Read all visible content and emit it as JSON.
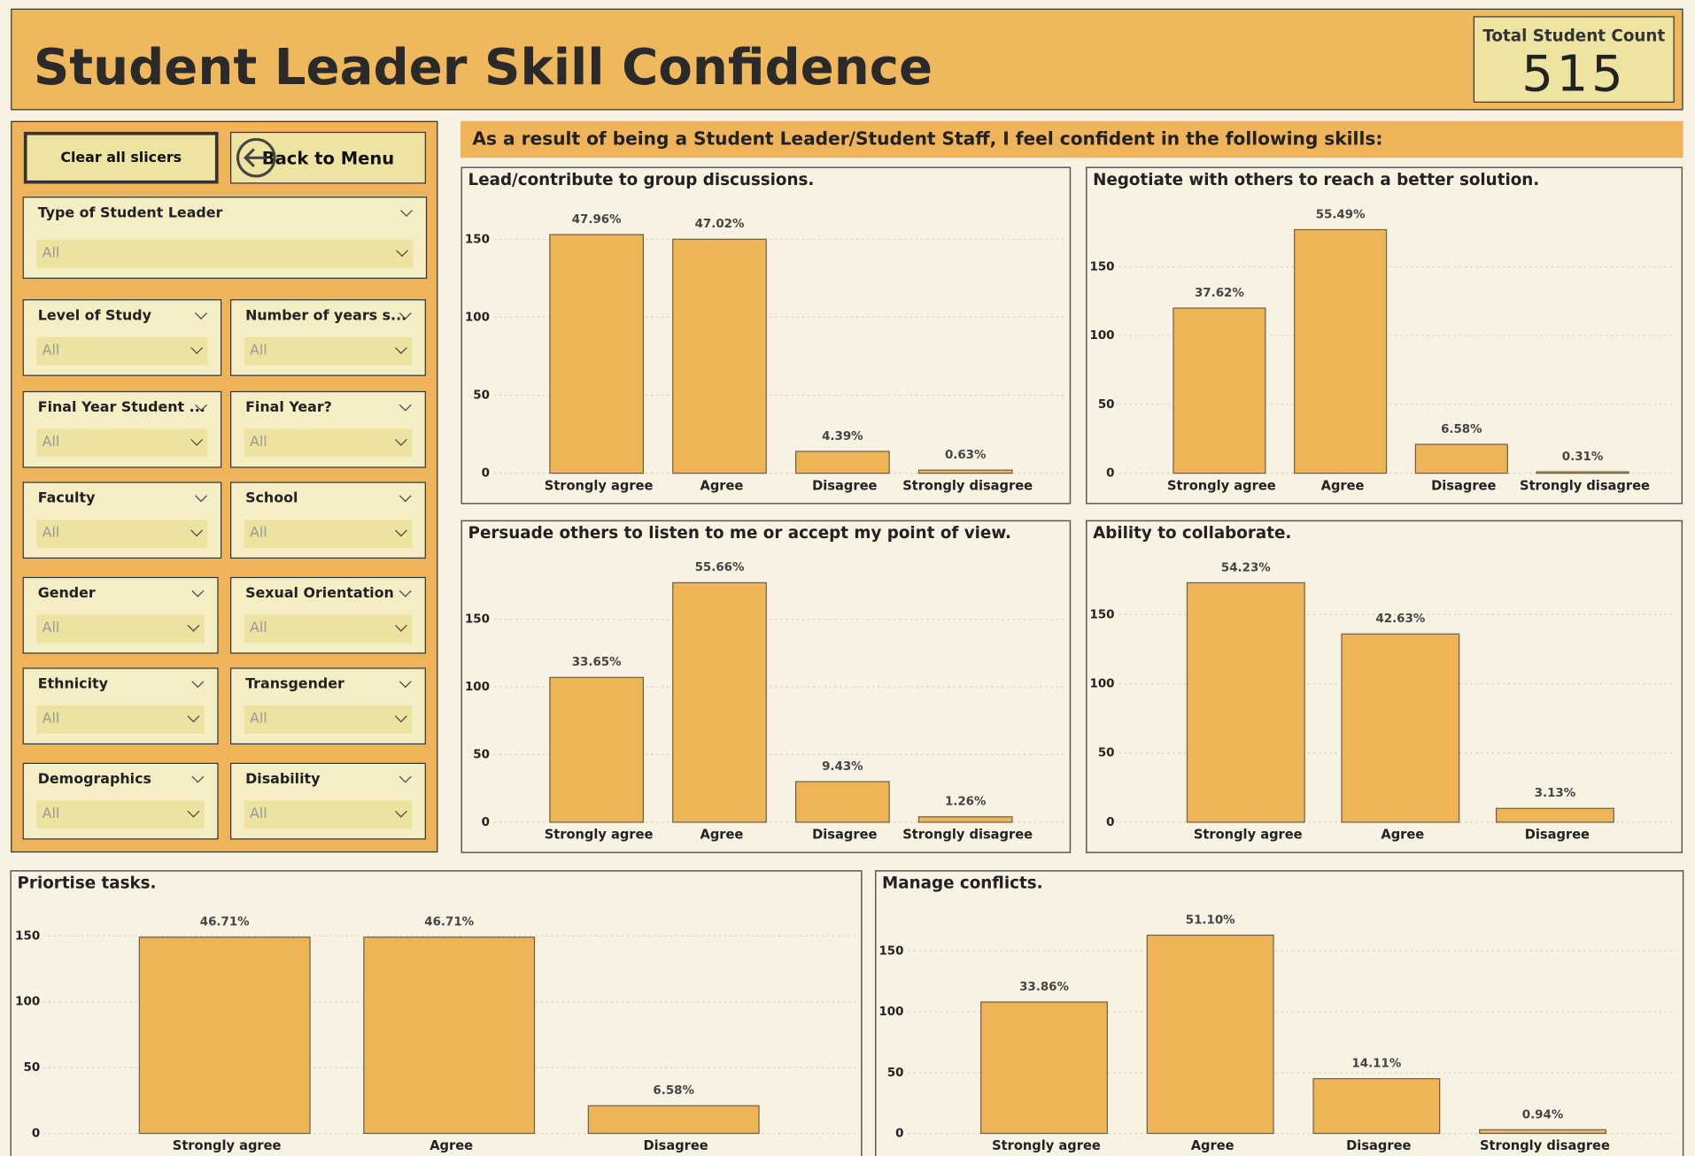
{
  "header": {
    "title": "Student Leader Skill Confidence",
    "kpi_label": "Total Student Count",
    "kpi_value": 515
  },
  "buttons": {
    "clear": "Clear all slicers",
    "back": "Back to Menu"
  },
  "slicers": [
    {
      "label": "Type of Student Leader",
      "value": "All"
    },
    {
      "label": "Level of Study",
      "value": "All"
    },
    {
      "label": "Number of years s...",
      "value": "All"
    },
    {
      "label": "Final Year Student ...",
      "value": "All"
    },
    {
      "label": "Final Year?",
      "value": "All"
    },
    {
      "label": "Faculty",
      "value": "All"
    },
    {
      "label": "School",
      "value": "All"
    },
    {
      "label": "Gender",
      "value": "All"
    },
    {
      "label": "Sexual Orientation",
      "value": "All"
    },
    {
      "label": "Ethnicity",
      "value": "All"
    },
    {
      "label": "Transgender",
      "value": "All"
    },
    {
      "label": "Demographics",
      "value": "All"
    },
    {
      "label": "Disability",
      "value": "All"
    }
  ],
  "banner": "As a result of being a Student Leader/Student Staff, I feel confident in the following skills:",
  "chart_data": [
    {
      "type": "bar",
      "title": "Lead/contribute to group discussions.",
      "categories": [
        "Strongly agree",
        "Agree",
        "Disagree",
        "Strongly disagree"
      ],
      "values": [
        153,
        150,
        14,
        2
      ],
      "value_labels": [
        "47.96%",
        "47.02%",
        "4.39%",
        "0.63%"
      ],
      "color": "#efb456",
      "ylim": [
        0,
        160
      ],
      "yticks": [
        0,
        50,
        100,
        150
      ],
      "grid": true
    },
    {
      "type": "bar",
      "title": "Negotiate with others to reach a better solution.",
      "categories": [
        "Strongly agree",
        "Agree",
        "Disagree",
        "Strongly disagree"
      ],
      "values": [
        120,
        177,
        21,
        1
      ],
      "value_labels": [
        "37.62%",
        "55.49%",
        "6.58%",
        "0.31%"
      ],
      "color": "#efb456",
      "ylim": [
        0,
        190
      ],
      "yticks": [
        0,
        50,
        100,
        150
      ],
      "grid": true
    },
    {
      "type": "bar",
      "title": "Persuade others to listen to me or accept my point of view.",
      "categories": [
        "Strongly agree",
        "Agree",
        "Disagree",
        "Strongly disagree"
      ],
      "values": [
        107,
        177,
        30,
        4
      ],
      "value_labels": [
        "33.65%",
        "55.66%",
        "9.43%",
        "1.26%"
      ],
      "color": "#efb456",
      "ylim": [
        0,
        190
      ],
      "yticks": [
        0,
        50,
        100,
        150
      ],
      "grid": true
    },
    {
      "type": "bar",
      "title": "Ability to collaborate.",
      "categories": [
        "Strongly agree",
        "Agree",
        "Disagree"
      ],
      "values": [
        173,
        136,
        10
      ],
      "value_labels": [
        "54.23%",
        "42.63%",
        "3.13%"
      ],
      "color": "#efb456",
      "ylim": [
        0,
        185
      ],
      "yticks": [
        0,
        50,
        100,
        150
      ],
      "grid": true
    },
    {
      "type": "bar",
      "title": "Priortise tasks.",
      "categories": [
        "Strongly agree",
        "Agree",
        "Disagree"
      ],
      "values": [
        149,
        149,
        21
      ],
      "value_labels": [
        "46.71%",
        "46.71%",
        "6.58%"
      ],
      "color": "#efb456",
      "ylim": [
        0,
        160
      ],
      "yticks": [
        0,
        50,
        100,
        150
      ],
      "grid": true
    },
    {
      "type": "bar",
      "title": "Manage conflicts.",
      "categories": [
        "Strongly agree",
        "Agree",
        "Disagree",
        "Strongly disagree"
      ],
      "values": [
        108,
        163,
        45,
        3
      ],
      "value_labels": [
        "33.86%",
        "51.10%",
        "14.11%",
        "0.94%"
      ],
      "color": "#efb456",
      "ylim": [
        0,
        175
      ],
      "yticks": [
        0,
        50,
        100,
        150
      ],
      "grid": true
    }
  ]
}
